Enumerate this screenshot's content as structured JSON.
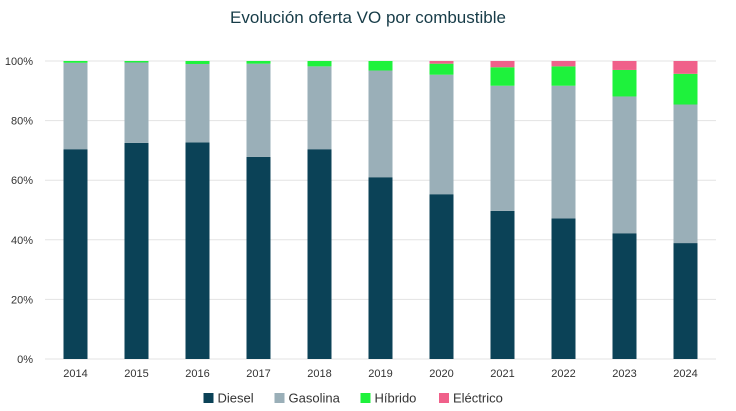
{
  "chart_data": {
    "type": "bar",
    "stacked": true,
    "title": "Evolución oferta VO por combustible",
    "xlabel": "",
    "ylabel": "",
    "ylim": [
      0,
      100
    ],
    "yticks": [
      "0%",
      "20%",
      "40%",
      "60%",
      "80%",
      "100%"
    ],
    "grid": true,
    "legend": "bottom",
    "categories": [
      "2014",
      "2015",
      "2016",
      "2017",
      "2018",
      "2019",
      "2020",
      "2021",
      "2022",
      "2023",
      "2024"
    ],
    "series": [
      {
        "name": "Diesel",
        "color": "#0b4257",
        "values": [
          70.4,
          72.5,
          72.7,
          67.8,
          70.4,
          61.0,
          55.3,
          49.7,
          47.2,
          42.2,
          38.9
        ]
      },
      {
        "name": "Gasolina",
        "color": "#9aafb8",
        "values": [
          29.0,
          27.0,
          26.3,
          31.3,
          27.8,
          35.8,
          40.1,
          42.0,
          44.5,
          45.9,
          46.5
        ]
      },
      {
        "name": "Híbrido",
        "color": "#1ef23c",
        "values": [
          0.6,
          0.5,
          1.0,
          0.9,
          1.8,
          3.2,
          3.7,
          6.2,
          6.5,
          8.9,
          10.3
        ]
      },
      {
        "name": "Eléctrico",
        "color": "#f0608a",
        "values": [
          0,
          0,
          0,
          0,
          0,
          0,
          0.9,
          2.1,
          1.8,
          3.0,
          4.3
        ]
      }
    ]
  }
}
